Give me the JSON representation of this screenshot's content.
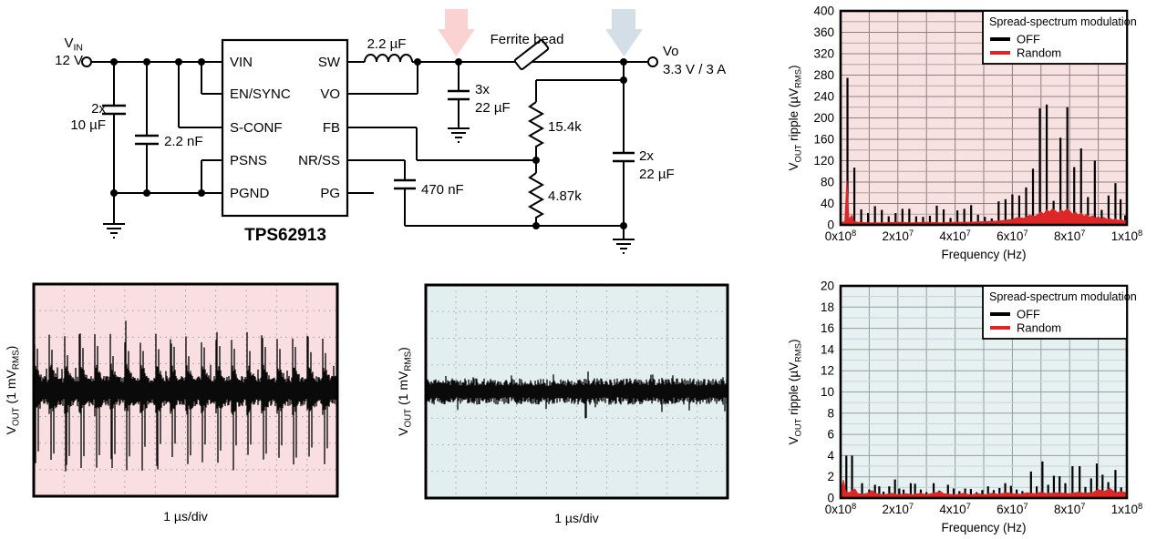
{
  "page": {
    "background": "#ffffff"
  },
  "schematic": {
    "vin_parts": [
      {
        "t": "V"
      },
      {
        "t": "IN",
        "sub": true
      }
    ],
    "vin_voltage": "12 V",
    "input_cap_qty": "2x",
    "input_cap_val": "10 µF",
    "cff_val": "2.2 nF",
    "chip_name": "TPS62913",
    "pins_left": [
      "VIN",
      "EN/SYNC",
      "S-CONF",
      "PSNS",
      "PGND"
    ],
    "pins_right": [
      "SW",
      "VO",
      "FB",
      "NR/SS",
      "PG"
    ],
    "inductor_val": "2.2 µF",
    "ferrite_label": "Ferrite bead",
    "cout1_qty": "3x",
    "cout1_val": "22 µF",
    "r_top": "15.4k",
    "r_bottom": "4.87k",
    "css_val": "470 nF",
    "cout2_qty": "2x",
    "cout2_val": "22 µF",
    "vo_label": "Vo",
    "vo_spec": "3.3 V / 3 A",
    "arrow_pink": "#fad2d2",
    "arrow_blue": "#d3dee6"
  },
  "chart_data": [
    {
      "id": "scope-off",
      "type": "oscilloscope",
      "condition": "spread-spectrum OFF",
      "bg": "#f9dfe1",
      "grid": "#b9a8ac",
      "trace_color": "#0a0a0a",
      "xlabel": "1 µs/div",
      "ylabel_parts": [
        {
          "t": "V"
        },
        {
          "t": "OUT",
          "sub": true
        },
        {
          "t": " (1 mV"
        },
        {
          "t": "RMS",
          "sub": true
        },
        {
          "t": ")"
        }
      ],
      "x_divisions": 10,
      "y_divisions": 8,
      "seed": 7,
      "wave": {
        "pattern": "switching-ripple",
        "period_divs": 0.5,
        "up_spike_divs": 2.1,
        "down_spike_divs": 2.95,
        "band_divs": 0.72
      }
    },
    {
      "id": "scope-random",
      "type": "oscilloscope",
      "condition": "spread-spectrum Random",
      "bg": "#e3eef0",
      "grid": "#a9bcc2",
      "trace_color": "#0a0a0a",
      "xlabel": "1 µs/div",
      "ylabel_parts": [
        {
          "t": "V"
        },
        {
          "t": "OUT",
          "sub": true
        },
        {
          "t": " (1 mV"
        },
        {
          "t": "RMS",
          "sub": true
        },
        {
          "t": ")"
        }
      ],
      "x_divisions": 10,
      "y_divisions": 8,
      "seed": 11,
      "wave": {
        "pattern": "random-noise",
        "band_divs": 0.62,
        "down_spike_at_div": 5.3,
        "down_spike_divs": 1.0
      }
    },
    {
      "id": "spectrum-high",
      "type": "bar-spectrum",
      "bg": "#f8e1e1",
      "grid_minor": "#b5a2a2",
      "grid_major": "#8d7f7f",
      "colors": {
        "off": "#000000",
        "random": "#dd2626"
      },
      "ylim": [
        0,
        400
      ],
      "ytick_step": 40,
      "grid_y_step": 20,
      "xmax_mhz": 100,
      "grid_x_step_mhz": 10,
      "xlabel": "Frequency (Hz)",
      "ylabel_parts": [
        {
          "t": "V"
        },
        {
          "t": "OUT",
          "sub": true
        },
        {
          "t": " ripple (µV"
        },
        {
          "t": "RMS",
          "sub": true
        },
        {
          "t": ")"
        }
      ],
      "xticks": [
        {
          "f_mhz": 0,
          "parts": [
            {
              "t": "0x10"
            },
            {
              "t": "8",
              "sup": true
            }
          ]
        },
        {
          "f_mhz": 20,
          "parts": [
            {
              "t": "2x10"
            },
            {
              "t": "7",
              "sup": true
            }
          ]
        },
        {
          "f_mhz": 40,
          "parts": [
            {
              "t": "4x10"
            },
            {
              "t": "7",
              "sup": true
            }
          ]
        },
        {
          "f_mhz": 60,
          "parts": [
            {
              "t": "6x10"
            },
            {
              "t": "7",
              "sup": true
            }
          ]
        },
        {
          "f_mhz": 80,
          "parts": [
            {
              "t": "8x10"
            },
            {
              "t": "7",
              "sup": true
            }
          ]
        },
        {
          "f_mhz": 100,
          "parts": [
            {
              "t": "1x10"
            },
            {
              "t": "8",
              "sup": true
            }
          ]
        }
      ],
      "legend": {
        "title": "Spread-spectrum modulation",
        "items": [
          {
            "label": "OFF",
            "color": "#000000"
          },
          {
            "label": "Random",
            "color": "#dd2626"
          }
        ]
      },
      "off_spikes_mhz_uv": [
        [
          2.4,
          275
        ],
        [
          4.8,
          107
        ],
        [
          7.2,
          29
        ],
        [
          9.6,
          22
        ],
        [
          12,
          35
        ],
        [
          14.4,
          28
        ],
        [
          16.8,
          16
        ],
        [
          19.2,
          22
        ],
        [
          21.6,
          30
        ],
        [
          24,
          30
        ],
        [
          26.4,
          16
        ],
        [
          28.8,
          15
        ],
        [
          31.2,
          17
        ],
        [
          33.6,
          36
        ],
        [
          36,
          29
        ],
        [
          38.4,
          13
        ],
        [
          40.8,
          27
        ],
        [
          43.2,
          30
        ],
        [
          45.6,
          37
        ],
        [
          48,
          19
        ],
        [
          50.4,
          15
        ],
        [
          52.8,
          12
        ],
        [
          55.2,
          44
        ],
        [
          57.6,
          48
        ],
        [
          60,
          57
        ],
        [
          62.4,
          55
        ],
        [
          64.8,
          70
        ],
        [
          67.2,
          105
        ],
        [
          69.6,
          218
        ],
        [
          72,
          225
        ],
        [
          74.4,
          45
        ],
        [
          76.8,
          163
        ],
        [
          79.2,
          220
        ],
        [
          81.6,
          108
        ],
        [
          84,
          143
        ],
        [
          86.4,
          52
        ],
        [
          88.8,
          120
        ],
        [
          91.2,
          28
        ],
        [
          93.6,
          55
        ],
        [
          96,
          78
        ],
        [
          97.8,
          48
        ],
        [
          99.4,
          18
        ]
      ],
      "random_profile_mhz_uv": [
        [
          0,
          4
        ],
        [
          1.5,
          6
        ],
        [
          2.2,
          82
        ],
        [
          2.9,
          10
        ],
        [
          4,
          18
        ],
        [
          4.6,
          6
        ],
        [
          6,
          5
        ],
        [
          10,
          4
        ],
        [
          15,
          4
        ],
        [
          20,
          5
        ],
        [
          25,
          4
        ],
        [
          30,
          5
        ],
        [
          35,
          4
        ],
        [
          40,
          5
        ],
        [
          45,
          5
        ],
        [
          50,
          6
        ],
        [
          55,
          7
        ],
        [
          58,
          9
        ],
        [
          60,
          10
        ],
        [
          62,
          14
        ],
        [
          64,
          12
        ],
        [
          66,
          18
        ],
        [
          68,
          16
        ],
        [
          70,
          24
        ],
        [
          71,
          20
        ],
        [
          72,
          28
        ],
        [
          73,
          24
        ],
        [
          74,
          30
        ],
        [
          75,
          26
        ],
        [
          76,
          22
        ],
        [
          77,
          28
        ],
        [
          78,
          24
        ],
        [
          79,
          30
        ],
        [
          80,
          26
        ],
        [
          81,
          20
        ],
        [
          82,
          24
        ],
        [
          83,
          18
        ],
        [
          84,
          22
        ],
        [
          85,
          16
        ],
        [
          86,
          20
        ],
        [
          87,
          14
        ],
        [
          88,
          17
        ],
        [
          89,
          12
        ],
        [
          90,
          15
        ],
        [
          91,
          11
        ],
        [
          92,
          14
        ],
        [
          93,
          10
        ],
        [
          94,
          12
        ],
        [
          95,
          9
        ],
        [
          96,
          11
        ],
        [
          97,
          8
        ],
        [
          98,
          10
        ],
        [
          99,
          7
        ],
        [
          100,
          9
        ]
      ]
    },
    {
      "id": "spectrum-low",
      "type": "bar-spectrum",
      "bg": "#e7f1f1",
      "grid_minor": "#c4d5d7",
      "grid_major": "#8fa0a3",
      "colors": {
        "off": "#000000",
        "random": "#dd2626"
      },
      "ylim": [
        0,
        20
      ],
      "ytick_step": 2,
      "grid_y_step": 1,
      "xmax_mhz": 100,
      "grid_x_step_mhz": 10,
      "xlabel": "Frequency (Hz)",
      "ylabel_parts": [
        {
          "t": "V"
        },
        {
          "t": "OUT",
          "sub": true
        },
        {
          "t": " ripple (µV"
        },
        {
          "t": "RMS",
          "sub": true
        },
        {
          "t": ")"
        }
      ],
      "xticks": [
        {
          "f_mhz": 0,
          "parts": [
            {
              "t": "0x10"
            },
            {
              "t": "8",
              "sup": true
            }
          ]
        },
        {
          "f_mhz": 20,
          "parts": [
            {
              "t": "2x10"
            },
            {
              "t": "7",
              "sup": true
            }
          ]
        },
        {
          "f_mhz": 40,
          "parts": [
            {
              "t": "4x10"
            },
            {
              "t": "7",
              "sup": true
            }
          ]
        },
        {
          "f_mhz": 60,
          "parts": [
            {
              "t": "6x10"
            },
            {
              "t": "7",
              "sup": true
            }
          ]
        },
        {
          "f_mhz": 80,
          "parts": [
            {
              "t": "8x10"
            },
            {
              "t": "7",
              "sup": true
            }
          ]
        },
        {
          "f_mhz": 100,
          "parts": [
            {
              "t": "1x10"
            },
            {
              "t": "8",
              "sup": true
            }
          ]
        }
      ],
      "legend": {
        "title": "Spread-spectrum modulation",
        "items": [
          {
            "label": "OFF",
            "color": "#000000"
          },
          {
            "label": "Random",
            "color": "#dd2626"
          }
        ]
      },
      "off_spikes_mhz_uv": [
        [
          2,
          4.0
        ],
        [
          4,
          4.0
        ],
        [
          7.5,
          1.4
        ],
        [
          10,
          0.8
        ],
        [
          12,
          1.25
        ],
        [
          13.5,
          1.1
        ],
        [
          15,
          0.6
        ],
        [
          17,
          1.1
        ],
        [
          19,
          1.75
        ],
        [
          20.5,
          0.9
        ],
        [
          22,
          0.8
        ],
        [
          24.5,
          1.4
        ],
        [
          26,
          1.35
        ],
        [
          28,
          0.8
        ],
        [
          30,
          0.55
        ],
        [
          32.5,
          1.4
        ],
        [
          34.5,
          0.7
        ],
        [
          37.5,
          1.25
        ],
        [
          39.5,
          0.9
        ],
        [
          41.5,
          0.65
        ],
        [
          43.5,
          0.9
        ],
        [
          45.5,
          0.85
        ],
        [
          47.5,
          0.55
        ],
        [
          49.5,
          0.75
        ],
        [
          51.5,
          1.1
        ],
        [
          53.5,
          0.75
        ],
        [
          55.5,
          0.95
        ],
        [
          57.5,
          1.4
        ],
        [
          59.5,
          1.15
        ],
        [
          61.5,
          0.8
        ],
        [
          63.5,
          0.65
        ],
        [
          66.5,
          2.5
        ],
        [
          68.5,
          1.1
        ],
        [
          70.5,
          3.45
        ],
        [
          72.5,
          1.25
        ],
        [
          74.5,
          2.1
        ],
        [
          76.5,
          2.05
        ],
        [
          78.5,
          1.4
        ],
        [
          81,
          3.0
        ],
        [
          83.5,
          3.0
        ],
        [
          85.5,
          1.05
        ],
        [
          87.5,
          1.85
        ],
        [
          89.5,
          3.25
        ],
        [
          91.5,
          2.2
        ],
        [
          93.5,
          1.5
        ],
        [
          96,
          2.65
        ],
        [
          98,
          1.0
        ]
      ],
      "random_profile_mhz_uv": [
        [
          0,
          0.5
        ],
        [
          1,
          1.7
        ],
        [
          1.8,
          0.6
        ],
        [
          3,
          0.5
        ],
        [
          5,
          0.85
        ],
        [
          6,
          0.4
        ],
        [
          8,
          0.35
        ],
        [
          10,
          0.5
        ],
        [
          11,
          0.7
        ],
        [
          12,
          0.45
        ],
        [
          15,
          0.3
        ],
        [
          18,
          0.45
        ],
        [
          20,
          0.3
        ],
        [
          23,
          0.4
        ],
        [
          25,
          0.3
        ],
        [
          28,
          0.45
        ],
        [
          30,
          0.3
        ],
        [
          33,
          0.5
        ],
        [
          35,
          0.6
        ],
        [
          36,
          0.4
        ],
        [
          40,
          0.3
        ],
        [
          43,
          0.45
        ],
        [
          45,
          0.3
        ],
        [
          48,
          0.4
        ],
        [
          50,
          0.3
        ],
        [
          53,
          0.45
        ],
        [
          55,
          0.35
        ],
        [
          58,
          0.5
        ],
        [
          60,
          0.4
        ],
        [
          63,
          0.35
        ],
        [
          65,
          0.5
        ],
        [
          68,
          0.4
        ],
        [
          70,
          0.55
        ],
        [
          72,
          0.4
        ],
        [
          75,
          0.5
        ],
        [
          78,
          0.45
        ],
        [
          80,
          0.4
        ],
        [
          83,
          0.55
        ],
        [
          85,
          0.45
        ],
        [
          88,
          0.5
        ],
        [
          90,
          0.8
        ],
        [
          92,
          0.6
        ],
        [
          94,
          0.9
        ],
        [
          96,
          0.5
        ],
        [
          98,
          0.6
        ],
        [
          100,
          0.5
        ]
      ]
    }
  ]
}
